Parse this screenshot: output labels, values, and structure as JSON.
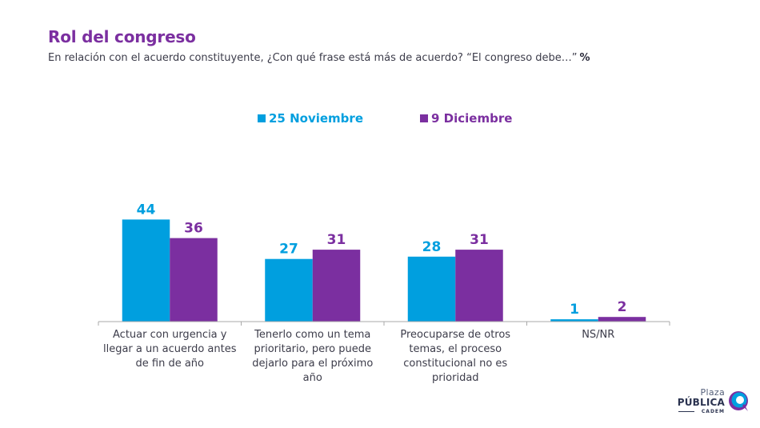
{
  "header": {
    "title": "Rol del congreso",
    "subtitle": "En relación con el acuerdo constituyente, ¿Con qué frase está más de acuerdo? “El congreso debe…”",
    "unit": "%"
  },
  "colors": {
    "series1": "#009fdf",
    "series2": "#7b2fa0",
    "title": "#7b2fa0",
    "axis": "#a8a8a8"
  },
  "logo": {
    "line1": "Plaza",
    "line2": "PÚBLICA",
    "line3": "CADEM"
  },
  "chart_data": {
    "type": "bar",
    "title": "Rol del congreso",
    "subtitle": "En relación con el acuerdo constituyente, ¿Con qué frase está más de acuerdo? “El congreso debe…” %",
    "xlabel": "",
    "ylabel": "",
    "ylim": [
      0,
      50
    ],
    "grid": false,
    "legend_position": "top-center",
    "categories": [
      "Actuar con urgencia y llegar a un acuerdo antes de fin de año",
      "Tenerlo como un tema prioritario, pero puede dejarlo para el próximo año",
      "Preocuparse de otros temas, el proceso constitucional no es prioridad",
      "NS/NR"
    ],
    "series": [
      {
        "name": "25 Noviembre",
        "values": [
          44,
          27,
          28,
          1
        ]
      },
      {
        "name": "9 Diciembre",
        "values": [
          36,
          31,
          31,
          2
        ]
      }
    ]
  }
}
